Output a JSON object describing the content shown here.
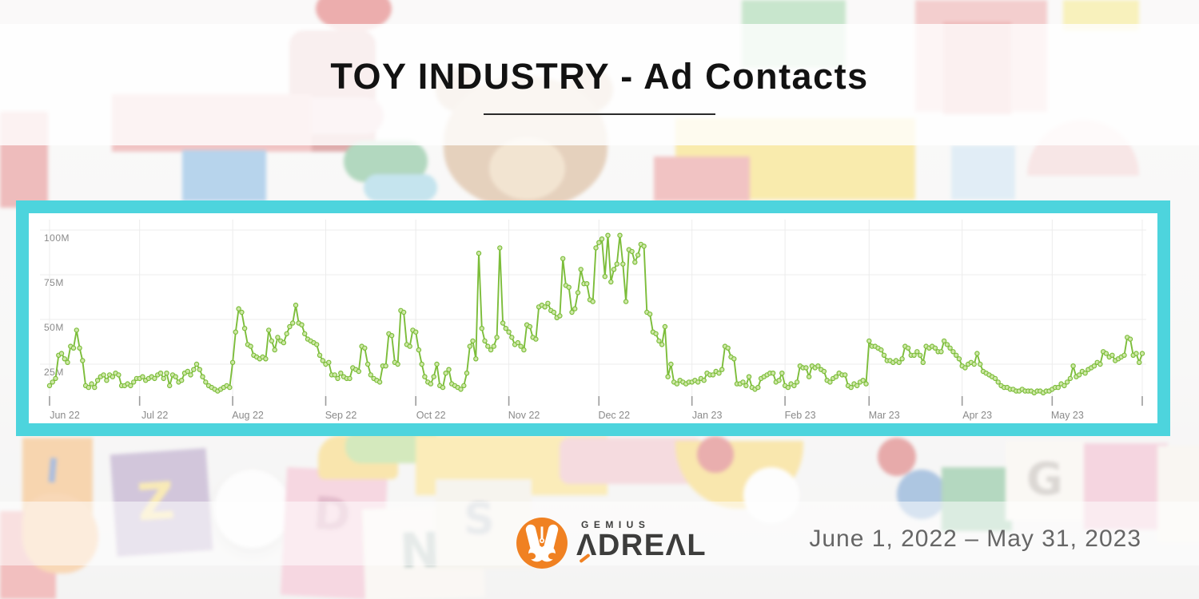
{
  "title": "TOY INDUSTRY - Ad Contacts",
  "footer": {
    "brand_top": "GEMIUS",
    "brand_main": "ΛDREΛL",
    "date_range": "June 1, 2022 – May 31, 2023"
  },
  "background": {
    "letters": [
      "I",
      "Z",
      "D",
      "N",
      "S",
      "G"
    ]
  },
  "colors": {
    "frame_teal": "#4dd4dd",
    "line_green": "#7cbd3a",
    "marker_fill": "#cfe8a9",
    "grid_gray": "#ececec",
    "tick_gray": "#9c9c9c",
    "axis_label_gray": "#8a8a8a",
    "logo_orange": "#f08122"
  },
  "chart_data": {
    "type": "line",
    "title": "Toy industry ad contacts per day",
    "unit": "M",
    "ylim": [
      0,
      105
    ],
    "grid": true,
    "y_tick_labels": [
      "100M",
      "75M",
      "50M",
      "25M"
    ],
    "y_tick_values": [
      100,
      75,
      50,
      25
    ],
    "x_tick_labels": [
      "Jun 22",
      "Jul 22",
      "Aug 22",
      "Sep 22",
      "Oct 22",
      "Nov 22",
      "Dec 22",
      "Jan 23",
      "Feb 23",
      "Mar 23",
      "Apr 23",
      "May 23"
    ],
    "month_start_day_offsets": [
      0,
      30,
      61,
      92,
      122,
      153,
      183,
      214,
      245,
      273,
      304,
      334
    ],
    "values_daily_millions": [
      13,
      15,
      17,
      30,
      31,
      28,
      26,
      35,
      34,
      44,
      34,
      27,
      13,
      12,
      14,
      12,
      16,
      18,
      19,
      16,
      19,
      18,
      20,
      19,
      13,
      13,
      14,
      13,
      15,
      17,
      17,
      18,
      16,
      17,
      18,
      17,
      19,
      20,
      17,
      20,
      13,
      19,
      18,
      15,
      16,
      20,
      21,
      19,
      22,
      25,
      22,
      18,
      15,
      13,
      12,
      11,
      10,
      11,
      12,
      13,
      12,
      26,
      43,
      56,
      54,
      45,
      36,
      35,
      30,
      29,
      28,
      29,
      28,
      44,
      38,
      33,
      40,
      38,
      37,
      42,
      46,
      48,
      58,
      48,
      47,
      42,
      39,
      38,
      37,
      36,
      30,
      27,
      25,
      26,
      19,
      19,
      17,
      20,
      18,
      17,
      17,
      23,
      22,
      21,
      35,
      34,
      25,
      19,
      17,
      16,
      15,
      24,
      24,
      42,
      41,
      26,
      25,
      55,
      54,
      36,
      35,
      44,
      43,
      33,
      25,
      18,
      15,
      14,
      18,
      25,
      13,
      12,
      20,
      22,
      14,
      13,
      12,
      11,
      13,
      20,
      35,
      38,
      28,
      87,
      45,
      38,
      35,
      33,
      35,
      40,
      90,
      48,
      45,
      43,
      40,
      36,
      37,
      35,
      33,
      47,
      46,
      40,
      39,
      57,
      58,
      57,
      59,
      55,
      54,
      51,
      52,
      84,
      69,
      68,
      54,
      56,
      65,
      78,
      70,
      70,
      61,
      60,
      90,
      93,
      95,
      74,
      97,
      71,
      78,
      81,
      97,
      81,
      60,
      89,
      88,
      82,
      86,
      92,
      91,
      54,
      53,
      43,
      42,
      38,
      36,
      46,
      18,
      25,
      15,
      14,
      16,
      15,
      14,
      15,
      15,
      16,
      15,
      17,
      16,
      20,
      19,
      19,
      21,
      20,
      22,
      35,
      34,
      29,
      28,
      14,
      14,
      15,
      13,
      18,
      12,
      11,
      12,
      17,
      18,
      19,
      20,
      20,
      15,
      16,
      20,
      13,
      12,
      14,
      13,
      15,
      24,
      23,
      23,
      18,
      24,
      23,
      24,
      22,
      21,
      16,
      15,
      17,
      18,
      20,
      19,
      19,
      13,
      12,
      14,
      13,
      15,
      16,
      14,
      38,
      35,
      35,
      34,
      33,
      30,
      27,
      27,
      26,
      27,
      26,
      28,
      35,
      34,
      30,
      30,
      32,
      30,
      26,
      35,
      34,
      35,
      34,
      32,
      32,
      38,
      36,
      34,
      32,
      30,
      28,
      24,
      23,
      25,
      26,
      25,
      31,
      25,
      21,
      20,
      19,
      18,
      17,
      15,
      13,
      12,
      12,
      11,
      11,
      10,
      10,
      11,
      10,
      10,
      10,
      9,
      10,
      10,
      9,
      10,
      10,
      11,
      12,
      12,
      14,
      13,
      15,
      17,
      24,
      18,
      19,
      21,
      20,
      22,
      23,
      24,
      26,
      25,
      32,
      31,
      29,
      30,
      27,
      28,
      29,
      30,
      40,
      39,
      30,
      31,
      26,
      31
    ]
  }
}
